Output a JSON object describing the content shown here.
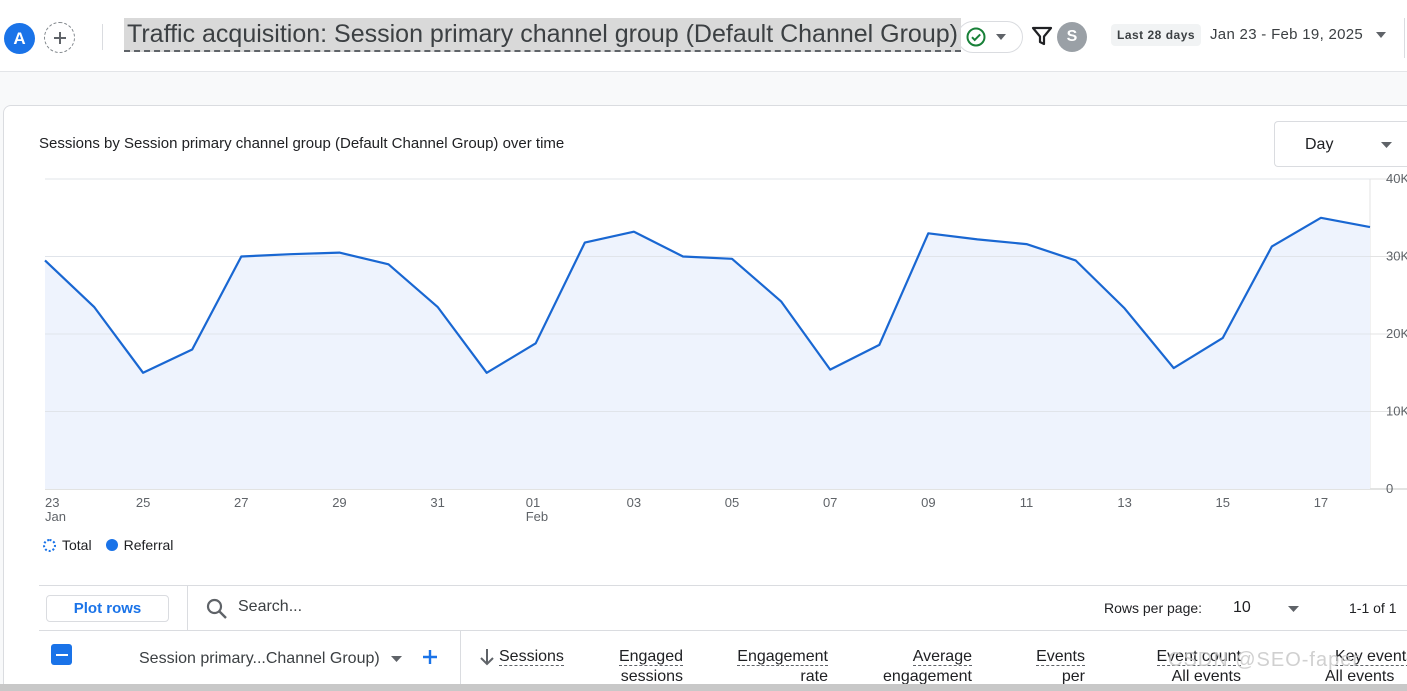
{
  "header": {
    "property_avatar": "A",
    "report_title": "Traffic acquisition: Session primary channel group (Default Channel Group)",
    "user_avatar": "S",
    "date_label": "Last 28 days",
    "date_range": "Jan 23 - Feb 19, 2025"
  },
  "chart": {
    "title": "Sessions by Session primary channel group (Default Channel Group) over time",
    "granularity": "Day",
    "legend": {
      "total": "Total",
      "referral": "Referral"
    }
  },
  "chart_data": {
    "type": "line",
    "title": "Sessions by Session primary channel group (Default Channel Group) over time",
    "x": [
      "Jan 23",
      "Jan 24",
      "Jan 25",
      "Jan 26",
      "Jan 27",
      "Jan 28",
      "Jan 29",
      "Jan 30",
      "Jan 31",
      "Feb 01",
      "Feb 02",
      "Feb 03",
      "Feb 04",
      "Feb 05",
      "Feb 06",
      "Feb 07",
      "Feb 08",
      "Feb 09",
      "Feb 10",
      "Feb 11",
      "Feb 12",
      "Feb 13",
      "Feb 14",
      "Feb 15",
      "Feb 16",
      "Feb 17",
      "Feb 18",
      "Feb 19"
    ],
    "series": [
      {
        "name": "Referral",
        "values": [
          29500,
          23500,
          15000,
          18000,
          30000,
          30300,
          30500,
          29000,
          23500,
          15000,
          18800,
          31800,
          33200,
          30000,
          29700,
          24200,
          15400,
          18600,
          33000,
          32200,
          31600,
          29500,
          23300,
          15600,
          19500,
          31300,
          35000,
          33800
        ]
      }
    ],
    "x_ticks": [
      {
        "label": "23",
        "sub": "Jan"
      },
      {
        "label": "25",
        "sub": ""
      },
      {
        "label": "27",
        "sub": ""
      },
      {
        "label": "29",
        "sub": ""
      },
      {
        "label": "31",
        "sub": ""
      },
      {
        "label": "01",
        "sub": "Feb"
      },
      {
        "label": "03",
        "sub": ""
      },
      {
        "label": "05",
        "sub": ""
      },
      {
        "label": "07",
        "sub": ""
      },
      {
        "label": "09",
        "sub": ""
      },
      {
        "label": "11",
        "sub": ""
      },
      {
        "label": "13",
        "sub": ""
      },
      {
        "label": "15",
        "sub": ""
      },
      {
        "label": "17",
        "sub": ""
      },
      {
        "label": "19",
        "sub": ""
      }
    ],
    "y_ticks": [
      "0",
      "10K",
      "20K",
      "30K",
      "40K"
    ],
    "ylim": [
      0,
      40000
    ],
    "grid": true,
    "legend_position": "bottom-left",
    "line_color": "#1967d2",
    "area_color": "#eef3fd"
  },
  "table": {
    "plot_rows_label": "Plot rows",
    "search_placeholder": "Search...",
    "rows_per_page_label": "Rows per page:",
    "rows_per_page_value": "10",
    "pagination": "1-1 of 1",
    "dimension_header": "Session primary...Channel Group)",
    "columns": [
      {
        "line1": "Sessions",
        "line2": ""
      },
      {
        "line1": "Engaged",
        "line2": "sessions"
      },
      {
        "line1": "Engagement",
        "line2": "rate"
      },
      {
        "line1": "Average",
        "line2": "engagement"
      },
      {
        "line1": "Events",
        "line2": "per"
      },
      {
        "line1": "Event count",
        "line2": "All events"
      },
      {
        "line1": "Key events",
        "line2": "All events"
      }
    ]
  },
  "watermark": "CSDN @SEO-faper",
  "colors": {
    "accent": "#1a73e8"
  }
}
